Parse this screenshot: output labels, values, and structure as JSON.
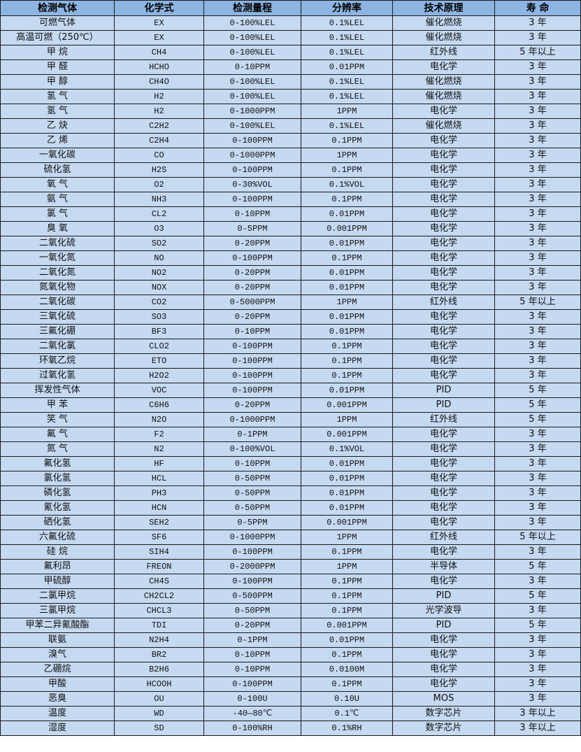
{
  "headers": [
    "检测气体",
    "化学式",
    "检测量程",
    "分辨率",
    "技术原理",
    "寿 命"
  ],
  "rows": [
    [
      "可燃气体",
      "EX",
      "0-100%LEL",
      "0.1%LEL",
      "催化燃烧",
      "3 年"
    ],
    [
      "高温可燃（250℃）",
      "EX",
      "0-100%LEL",
      "0.1%LEL",
      "催化燃烧",
      "3 年"
    ],
    [
      "甲 烷",
      "CH4",
      "0-100%LEL",
      "0.1%LEL",
      "红外线",
      "5 年以上"
    ],
    [
      "甲 醛",
      "HCHO",
      "0-10PPM",
      "0.01PPM",
      "电化学",
      "3 年"
    ],
    [
      "甲 醇",
      "CH4O",
      "0-100%LEL",
      "0.1%LEL",
      "催化燃烧",
      "3 年"
    ],
    [
      "氢 气",
      "H2",
      "0-100%LEL",
      "0.1%LEL",
      "催化燃烧",
      "3 年"
    ],
    [
      "氢 气",
      "H2",
      "0-1000PPM",
      "1PPM",
      "电化学",
      "3 年"
    ],
    [
      "乙 炔",
      "C2H2",
      "0-100%LEL",
      "0.1%LEL",
      "催化燃烧",
      "3 年"
    ],
    [
      "乙 烯",
      "C2H4",
      "0-100PPM",
      "0.1PPM",
      "电化学",
      "3 年"
    ],
    [
      "一氧化碳",
      "CO",
      "0-1000PPM",
      "1PPM",
      "电化学",
      "3 年"
    ],
    [
      "硫化氢",
      "H2S",
      "0-100PPM",
      "0.1PPM",
      "电化学",
      "3 年"
    ],
    [
      "氧 气",
      "O2",
      "0-30%VOL",
      "0.1%VOL",
      "电化学",
      "3 年"
    ],
    [
      "氨 气",
      "NH3",
      "0-100PPM",
      "0.1PPM",
      "电化学",
      "3 年"
    ],
    [
      "氯 气",
      "CL2",
      "0-10PPM",
      "0.01PPM",
      "电化学",
      "3 年"
    ],
    [
      "臭 氧",
      "O3",
      "0-5PPM",
      "0.001PPM",
      "电化学",
      "3 年"
    ],
    [
      "二氧化硫",
      "SO2",
      "0-20PPM",
      "0.01PPM",
      "电化学",
      "3 年"
    ],
    [
      "一氧化氮",
      "NO",
      "0-100PPM",
      "0.1PPM",
      "电化学",
      "3 年"
    ],
    [
      "二氧化氮",
      "NO2",
      "0-20PPM",
      "0.01PPM",
      "电化学",
      "3 年"
    ],
    [
      "氮氧化物",
      "NOX",
      "0-20PPM",
      "0.01PPM",
      "电化学",
      "3 年"
    ],
    [
      "二氧化碳",
      "CO2",
      "0-5000PPM",
      "1PPM",
      "红外线",
      "5 年以上"
    ],
    [
      "三氧化硫",
      "SO3",
      "0-20PPM",
      "0.01PPM",
      "电化学",
      "3 年"
    ],
    [
      "三氟化硼",
      "BF3",
      "0-10PPM",
      "0.01PPM",
      "电化学",
      "3 年"
    ],
    [
      "二氧化氯",
      "CLO2",
      "0-100PPM",
      "0.1PPM",
      "电化学",
      "3 年"
    ],
    [
      "环氧乙烷",
      "ETO",
      "0-100PPM",
      "0.1PPM",
      "电化学",
      "3 年"
    ],
    [
      "过氧化氢",
      "H2O2",
      "0-100PPM",
      "0.1PPM",
      "电化学",
      "3 年"
    ],
    [
      "挥发性气体",
      "VOC",
      "0-100PPM",
      "0.01PPM",
      "PID",
      "5 年"
    ],
    [
      "甲 苯",
      "C6H6",
      "0-20PPM",
      "0.001PPM",
      "PID",
      "5 年"
    ],
    [
      "笑 气",
      "N2O",
      "0-1000PPM",
      "1PPM",
      "红外线",
      "5 年"
    ],
    [
      "氟 气",
      "F2",
      "0-1PPM",
      "0.001PPM",
      "电化学",
      "3 年"
    ],
    [
      "氮 气",
      "N2",
      "0-100%VOL",
      "0.1%VOL",
      "电化学",
      "3 年"
    ],
    [
      "氟化氢",
      "HF",
      "0-10PPM",
      "0.01PPM",
      "电化学",
      "3 年"
    ],
    [
      "氯化氢",
      "HCL",
      "0-50PPM",
      "0.01PPM",
      "电化学",
      "3 年"
    ],
    [
      "磷化氢",
      "PH3",
      "0-50PPM",
      "0.01PPM",
      "电化学",
      "3 年"
    ],
    [
      "氰化氢",
      "HCN",
      "0-50PPM",
      "0.01PPM",
      "电化学",
      "3 年"
    ],
    [
      "硒化氢",
      "SEH2",
      "0-5PPM",
      "0.001PPM",
      "电化学",
      "3 年"
    ],
    [
      "六氟化硫",
      "SF6",
      "0-1000PPM",
      "1PPM",
      "红外线",
      "5 年以上"
    ],
    [
      "硅 烷",
      "SIH4",
      "0-100PPM",
      "0.1PPM",
      "电化学",
      "3 年"
    ],
    [
      "氟利昂",
      "FREON",
      "0-2000PPM",
      "1PPM",
      "半导体",
      "5 年"
    ],
    [
      "甲硫醇",
      "CH4S",
      "0-100PPM",
      "0.1PPM",
      "电化学",
      "3 年"
    ],
    [
      "二氯甲烷",
      "CH2CL2",
      "0-500PPM",
      "0.1PPM",
      "PID",
      "5 年"
    ],
    [
      "三氯甲烷",
      "CHCL3",
      "0-50PPM",
      "0.1PPM",
      "光学波导",
      "3 年"
    ],
    [
      "甲苯二异氰酸酯",
      "TDI",
      "0-20PPM",
      "0.001PPM",
      "PID",
      "5 年"
    ],
    [
      "联氨",
      "N2H4",
      "0-1PPM",
      "0.01PPM",
      "电化学",
      "3 年"
    ],
    [
      "溴气",
      "BR2",
      "0-10PPM",
      "0.1PPM",
      "电化学",
      "3 年"
    ],
    [
      "乙硼烷",
      "B2H6",
      "0-10PPM",
      "0.0100M",
      "电化学",
      "3 年"
    ],
    [
      "甲酸",
      "HCOOH",
      "0-100PPM",
      "0.1PPM",
      "电化学",
      "3 年"
    ],
    [
      "恶臭",
      "OU",
      "0-100U",
      "0.10U",
      "MOS",
      "3 年"
    ],
    [
      "温度",
      "WD",
      "-40—80℃",
      "0.1℃",
      "数字芯片",
      "3 年以上"
    ],
    [
      "湿度",
      "SD",
      "0-100%RH",
      "0.1%RH",
      "数字芯片",
      "3 年以上"
    ]
  ],
  "colors": {
    "header_bg": "#8DB4E2",
    "row_bg": "#C5D9F1",
    "border": "#1a1a1a"
  }
}
